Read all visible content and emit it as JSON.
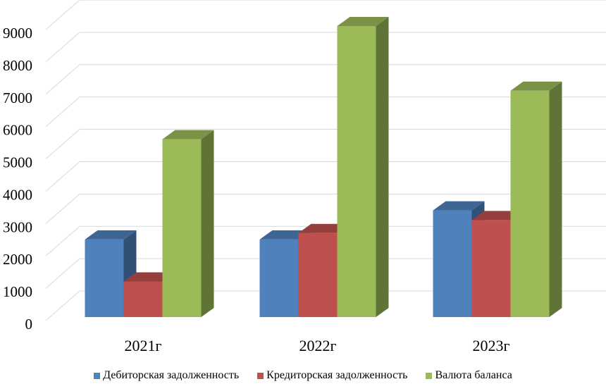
{
  "chart_data": {
    "type": "bar",
    "variant": "3d-clustered-column",
    "categories": [
      "2021г",
      "2022г",
      "2023г"
    ],
    "series": [
      {
        "name": "Дебиторская задолженность",
        "color": "#4F81BD",
        "values": [
          2400,
          2400,
          3300
        ]
      },
      {
        "name": "Кредиторская задолженность",
        "color": "#C0504D",
        "values": [
          1100,
          2600,
          3000
        ]
      },
      {
        "name": "Валюта баланса",
        "color": "#9BBB59",
        "values": [
          5500,
          9000,
          7000
        ]
      }
    ],
    "title": "",
    "xlabel": "",
    "ylabel": "",
    "ylim": [
      0,
      9000
    ],
    "yticks": [
      0,
      1000,
      2000,
      3000,
      4000,
      5000,
      6000,
      7000,
      8000,
      9000
    ],
    "grid": true,
    "legend_position": "bottom"
  }
}
